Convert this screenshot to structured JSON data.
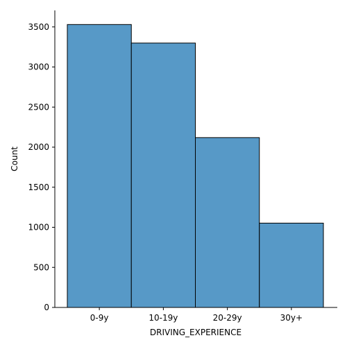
{
  "chart_data": {
    "type": "bar",
    "categories": [
      "0-9y",
      "10-19y",
      "20-29y",
      "30y+"
    ],
    "values": [
      3530,
      3299,
      2119,
      1052
    ],
    "title": "",
    "xlabel": "DRIVING_EXPERIENCE",
    "ylabel": "Count",
    "ylim": [
      0,
      3706
    ],
    "yticks": [
      0,
      500,
      1000,
      1500,
      2000,
      2500,
      3000,
      3500
    ],
    "grid": false,
    "bar_color": "#5799c7",
    "edge_color": "#000000"
  }
}
